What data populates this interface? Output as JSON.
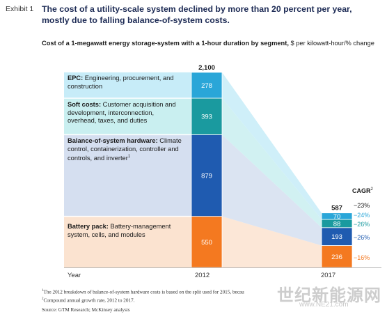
{
  "header": {
    "exhibit": "Exhibit 1",
    "title": "The cost of a utility-scale system declined by more than 20 percent per year, mostly due to falling balance-of-system costs.",
    "subtitle_bold": "Cost of a 1-megawatt energy storage-system with a 1-hour duration by segment,",
    "subtitle_unit": " $ per kilowatt-hour/% change"
  },
  "segments": [
    {
      "name": "EPC:",
      "desc": " Engineering, procurement, and construction",
      "note": ""
    },
    {
      "name": "Soft costs:",
      "desc": " Customer acquisition and development, interconnection, overhead, taxes, and duties",
      "note": ""
    },
    {
      "name": "Balance-of-system hardware:",
      "desc": " Climate control, containerization, controller and controls, and inverter",
      "note": "1"
    },
    {
      "name": "Battery pack:",
      "desc": " Battery-management system, cells, and modules",
      "note": ""
    }
  ],
  "cagr": {
    "header": "CAGR",
    "note": "2"
  },
  "footnotes": {
    "f1_num": "1",
    "f1": "The 2012 breakdown of balance-of-system hardware costs is based on the split used for 2015, becau",
    "f2_num": "2",
    "f2": "Compound annual growth rate, 2012 to 2017.",
    "source": "Source: GTM Research; McKinsey analysis"
  },
  "watermark": {
    "text": "世纪新能源网",
    "sub": "www.NE21.com"
  },
  "chart_data": {
    "type": "bar",
    "stacked": true,
    "xlabel": "Year",
    "categories": [
      "2012",
      "2017"
    ],
    "totals": [
      2100,
      587
    ],
    "series": [
      {
        "name": "Battery pack",
        "values": [
          550,
          236
        ],
        "cagr": "−16%",
        "color": "#f47920",
        "color_light": "#fbe3d0"
      },
      {
        "name": "Balance-of-system hardware",
        "values": [
          879,
          193
        ],
        "cagr": "−26%",
        "color": "#1f5bb0",
        "color_light": "#d5dff0"
      },
      {
        "name": "Soft costs",
        "values": [
          393,
          88
        ],
        "cagr": "−26%",
        "color": "#1a9a9f",
        "color_light": "#c9eff0"
      },
      {
        "name": "EPC",
        "values": [
          278,
          70
        ],
        "cagr": "−24%",
        "color": "#2aa6d8",
        "color_light": "#c7ecf8"
      }
    ],
    "total_cagr": "−23%",
    "grid": false,
    "legend": "inline-left"
  }
}
